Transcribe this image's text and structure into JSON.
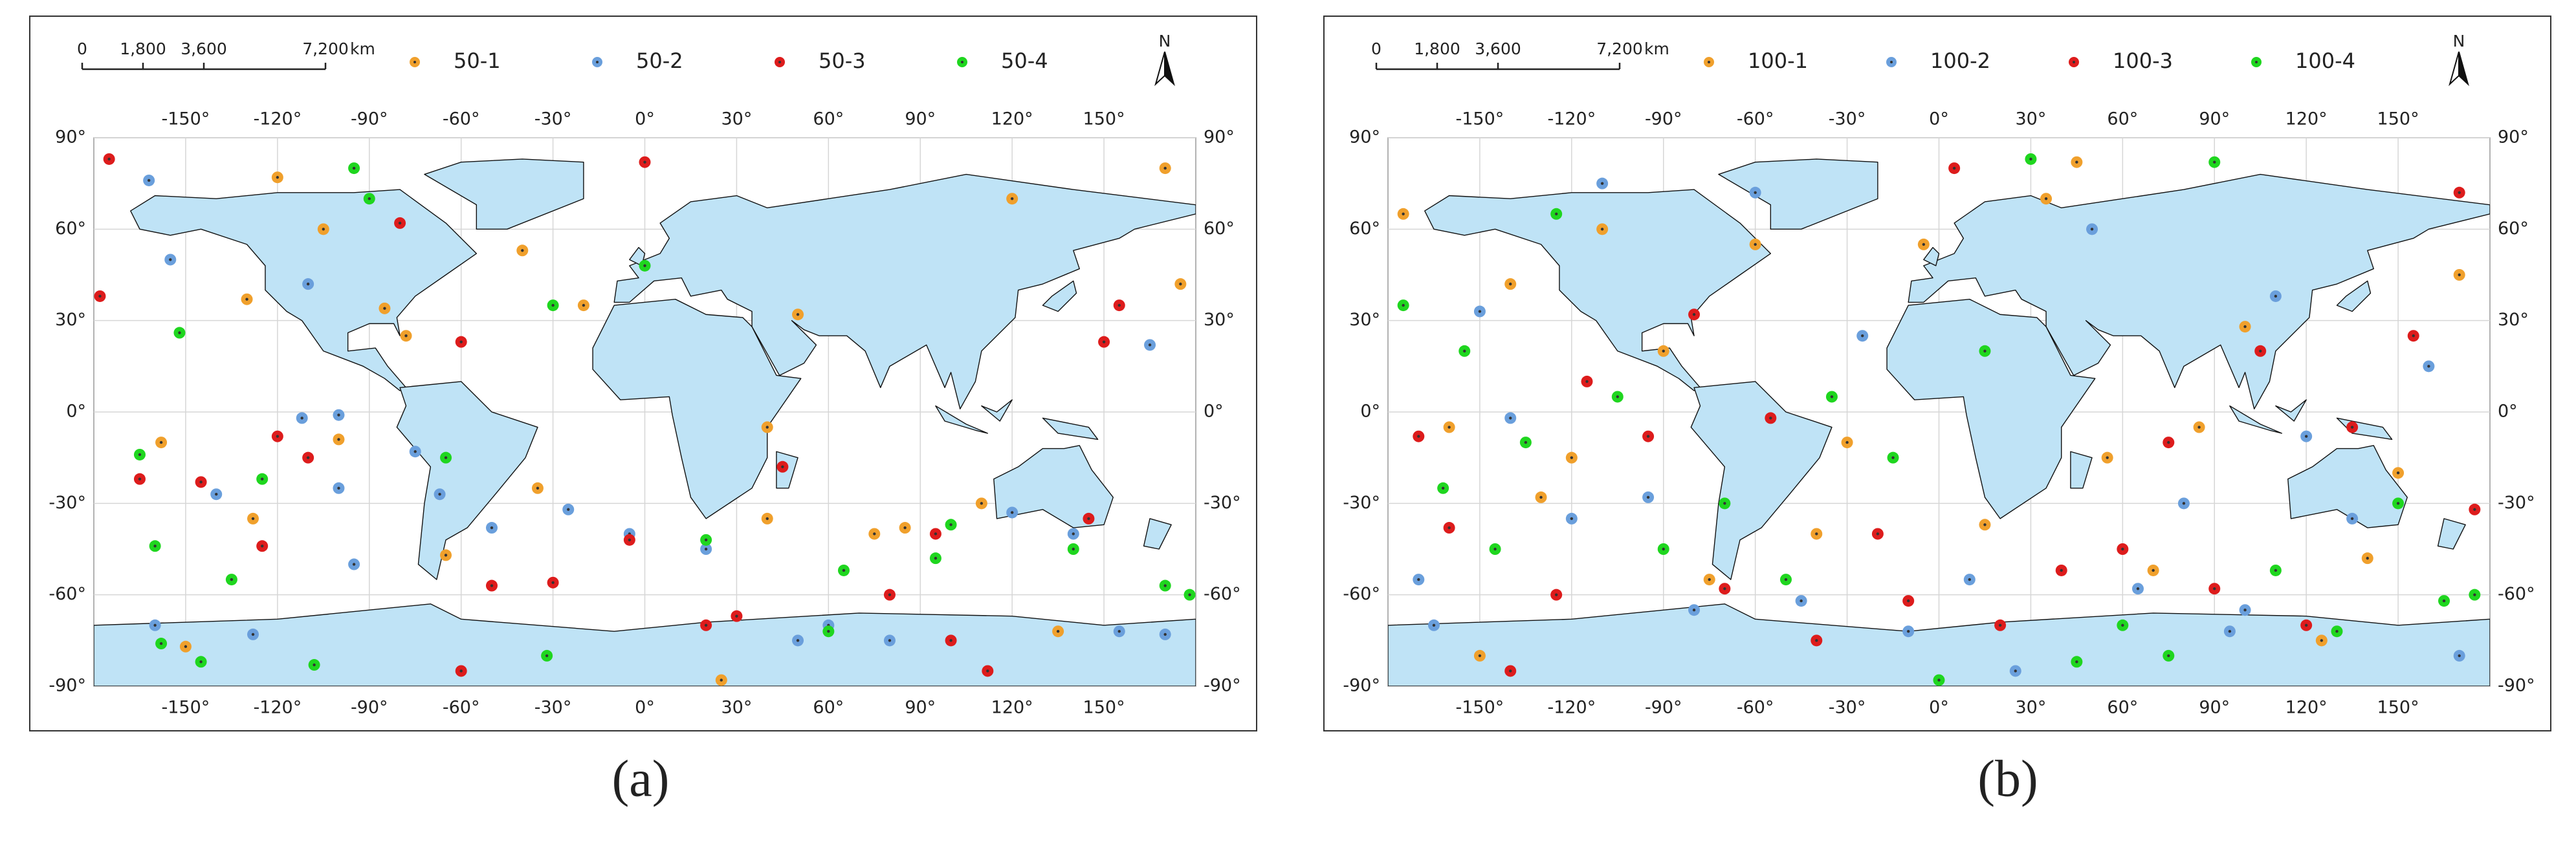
{
  "panels": [
    {
      "label": "(a)",
      "north": "N",
      "scale_bar": {
        "ticks": [
          {
            "value": 0,
            "label": "0"
          },
          {
            "value": 1800,
            "label": "1,800"
          },
          {
            "value": 3600,
            "label": "3,600"
          },
          {
            "value": 7200,
            "label": "7,200"
          }
        ],
        "unit": "km"
      },
      "xlim": [
        -180,
        180
      ],
      "ylim": [
        -90,
        90
      ],
      "xticks": [
        {
          "value": -150,
          "label": "-150°"
        },
        {
          "value": -120,
          "label": "-120°"
        },
        {
          "value": -90,
          "label": "-90°"
        },
        {
          "value": -60,
          "label": "-60°"
        },
        {
          "value": -30,
          "label": "-30°"
        },
        {
          "value": 0,
          "label": "0°"
        },
        {
          "value": 30,
          "label": "30°"
        },
        {
          "value": 60,
          "label": "60°"
        },
        {
          "value": 90,
          "label": "90°"
        },
        {
          "value": 120,
          "label": "120°"
        },
        {
          "value": 150,
          "label": "150°"
        }
      ],
      "yticks": [
        {
          "value": 90,
          "label": "90°"
        },
        {
          "value": 60,
          "label": "60°"
        },
        {
          "value": 30,
          "label": "30°"
        },
        {
          "value": 0,
          "label": "0°"
        },
        {
          "value": -30,
          "label": "-30°"
        },
        {
          "value": -60,
          "label": "-60°"
        },
        {
          "value": -90,
          "label": "-90°"
        }
      ],
      "series": [
        {
          "name": "50-1",
          "color": "#f0a02c",
          "lon": [
            -158,
            -150,
            -130,
            -128,
            -120,
            -105,
            -100,
            -85,
            -78,
            -65,
            -40,
            -35,
            -20,
            25,
            40,
            40,
            50,
            75,
            85,
            110,
            120,
            135,
            170,
            175
          ],
          "lat": [
            -10,
            -77,
            37,
            -35,
            77,
            60,
            -9,
            34,
            25,
            -47,
            53,
            -25,
            35,
            -88,
            -35,
            -5,
            32,
            -40,
            -38,
            -30,
            70,
            -72,
            80,
            42
          ]
        },
        {
          "name": "50-2",
          "color": "#6a9fdc",
          "lon": [
            -162,
            -160,
            -155,
            -140,
            -128,
            -112,
            -100,
            -95,
            -75,
            -67,
            -50,
            -25,
            -5,
            20,
            50,
            60,
            80,
            120,
            140,
            155,
            165,
            170,
            -110,
            -100
          ],
          "lat": [
            76,
            -70,
            50,
            -27,
            -73,
            -2,
            -25,
            -50,
            -13,
            -27,
            -38,
            -32,
            -40,
            -45,
            -75,
            -70,
            -75,
            -33,
            -40,
            -72,
            22,
            -73,
            42,
            -1
          ]
        },
        {
          "name": "50-3",
          "color": "#dd1c1c",
          "lon": [
            -178,
            -175,
            -165,
            -145,
            -125,
            -120,
            -110,
            -60,
            -50,
            -30,
            -5,
            0,
            20,
            30,
            45,
            80,
            95,
            100,
            112,
            145,
            150,
            155,
            -60,
            -80
          ],
          "lat": [
            38,
            83,
            -22,
            -23,
            -44,
            -8,
            -15,
            -85,
            -57,
            -56,
            -42,
            82,
            -70,
            -67,
            -18,
            -60,
            -40,
            -75,
            -85,
            -35,
            23,
            35,
            23,
            62
          ]
        },
        {
          "name": "50-4",
          "color": "#1fd61f",
          "lon": [
            -165,
            -160,
            -158,
            -152,
            -145,
            -135,
            -125,
            -108,
            -95,
            -65,
            -32,
            -30,
            0,
            20,
            60,
            65,
            95,
            100,
            140,
            170,
            178,
            -90
          ],
          "lat": [
            -14,
            -44,
            -76,
            26,
            -82,
            -55,
            -22,
            -83,
            80,
            -15,
            -80,
            35,
            48,
            -42,
            -72,
            -52,
            -48,
            -37,
            -45,
            -57,
            -60,
            70
          ]
        }
      ]
    },
    {
      "label": "(b)",
      "north": "N",
      "scale_bar": {
        "ticks": [
          {
            "value": 0,
            "label": "0"
          },
          {
            "value": 1800,
            "label": "1,800"
          },
          {
            "value": 3600,
            "label": "3,600"
          },
          {
            "value": 7200,
            "label": "7,200"
          }
        ],
        "unit": "km"
      },
      "xlim": [
        -180,
        180
      ],
      "ylim": [
        -90,
        90
      ],
      "xticks": [
        {
          "value": -150,
          "label": "-150°"
        },
        {
          "value": -120,
          "label": "-120°"
        },
        {
          "value": -90,
          "label": "-90°"
        },
        {
          "value": -60,
          "label": "-60°"
        },
        {
          "value": -30,
          "label": "-30°"
        },
        {
          "value": 0,
          "label": "0°"
        },
        {
          "value": 30,
          "label": "30°"
        },
        {
          "value": 60,
          "label": "60°"
        },
        {
          "value": 90,
          "label": "90°"
        },
        {
          "value": 120,
          "label": "120°"
        },
        {
          "value": 150,
          "label": "150°"
        }
      ],
      "yticks": [
        {
          "value": 90,
          "label": "90°"
        },
        {
          "value": 60,
          "label": "60°"
        },
        {
          "value": 30,
          "label": "30°"
        },
        {
          "value": 0,
          "label": "0°"
        },
        {
          "value": -30,
          "label": "-30°"
        },
        {
          "value": -60,
          "label": "-60°"
        },
        {
          "value": -90,
          "label": "-90°"
        }
      ],
      "series": [
        {
          "name": "100-1",
          "color": "#f0a02c",
          "lon": [
            -175,
            -160,
            -150,
            -140,
            -130,
            -120,
            -110,
            -90,
            -75,
            -60,
            -40,
            -30,
            -5,
            15,
            35,
            45,
            55,
            70,
            85,
            100,
            125,
            140,
            150,
            170
          ],
          "lat": [
            65,
            -5,
            -80,
            42,
            -28,
            -15,
            60,
            20,
            -55,
            55,
            -40,
            -10,
            55,
            -37,
            70,
            82,
            -15,
            -52,
            -5,
            28,
            -75,
            -48,
            -20,
            45
          ]
        },
        {
          "name": "100-2",
          "color": "#6a9fdc",
          "lon": [
            -170,
            -165,
            -150,
            -140,
            -120,
            -110,
            -95,
            -80,
            -60,
            -45,
            -25,
            -10,
            10,
            25,
            50,
            65,
            80,
            95,
            110,
            120,
            135,
            160,
            170,
            100
          ],
          "lat": [
            -55,
            -70,
            33,
            -2,
            -35,
            75,
            -28,
            -65,
            72,
            -62,
            25,
            -72,
            -55,
            -85,
            60,
            -58,
            -30,
            -72,
            38,
            -8,
            -35,
            15,
            -80,
            -65
          ]
        },
        {
          "name": "100-3",
          "color": "#dd1c1c",
          "lon": [
            -170,
            -160,
            -140,
            -125,
            -115,
            -95,
            -80,
            -70,
            -55,
            -40,
            -20,
            -10,
            5,
            20,
            40,
            60,
            75,
            90,
            105,
            120,
            135,
            155,
            170,
            175
          ],
          "lat": [
            -8,
            -38,
            -85,
            -60,
            10,
            -8,
            32,
            -58,
            -2,
            -75,
            -40,
            -62,
            80,
            -70,
            -52,
            -45,
            -10,
            -58,
            20,
            -70,
            -5,
            25,
            72,
            -32
          ]
        },
        {
          "name": "100-4",
          "color": "#1fd61f",
          "lon": [
            -175,
            -162,
            -155,
            -145,
            -135,
            -125,
            -105,
            -90,
            -70,
            -50,
            -35,
            -15,
            0,
            15,
            30,
            45,
            60,
            75,
            90,
            110,
            130,
            150,
            165,
            175
          ],
          "lat": [
            35,
            -25,
            20,
            -45,
            -10,
            65,
            5,
            -45,
            -30,
            -55,
            5,
            -15,
            -88,
            20,
            83,
            -82,
            -70,
            -80,
            82,
            -52,
            -72,
            -30,
            -62,
            -60
          ]
        }
      ]
    }
  ]
}
